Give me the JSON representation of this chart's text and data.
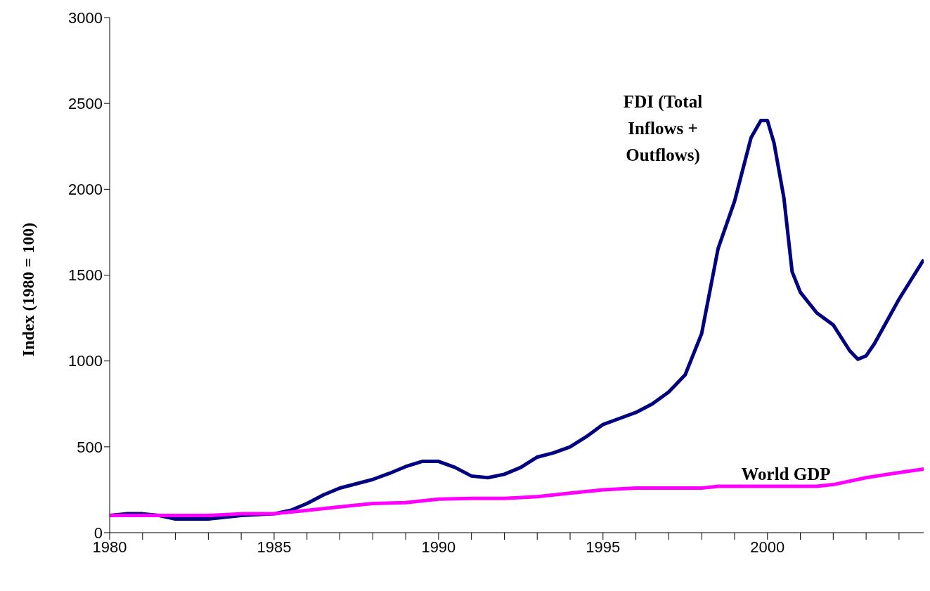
{
  "chart_data": {
    "type": "line",
    "ylabel": "Index (1980 = 100)",
    "xlim": [
      1980,
      2004.75
    ],
    "xticks": [
      1980,
      {
        "value": 1981,
        "label": null
      },
      {
        "value": 1982,
        "label": null
      },
      {
        "value": 1983,
        "label": null
      },
      {
        "value": 1984,
        "label": null
      },
      1985,
      {
        "value": 1986,
        "label": null
      },
      {
        "value": 1987,
        "label": null
      },
      {
        "value": 1988,
        "label": null
      },
      {
        "value": 1989,
        "label": null
      },
      1990,
      {
        "value": 1991,
        "label": null
      },
      {
        "value": 1992,
        "label": null
      },
      {
        "value": 1993,
        "label": null
      },
      {
        "value": 1994,
        "label": null
      },
      1995,
      {
        "value": 1996,
        "label": null
      },
      {
        "value": 1997,
        "label": null
      },
      {
        "value": 1998,
        "label": null
      },
      {
        "value": 1999,
        "label": null
      },
      2000,
      {
        "value": 2001,
        "label": null
      },
      {
        "value": 2002,
        "label": null
      },
      {
        "value": 2003,
        "label": null
      },
      {
        "value": 2004,
        "label": null
      }
    ],
    "ylim": [
      0,
      3000
    ],
    "yticks": [
      0,
      500,
      1000,
      1500,
      2000,
      2500,
      3000
    ],
    "grid": false,
    "legend": false,
    "marker": "none",
    "line_style": "solid",
    "series": [
      {
        "name": "FDI (Total Inflows + Outflows)",
        "color": "#000080",
        "x": [
          1980,
          1980.5,
          1981,
          1981.5,
          1982,
          1983,
          1984,
          1985,
          1985.5,
          1986,
          1986.5,
          1987,
          1988,
          1988.5,
          1989,
          1989.5,
          1990,
          1990.5,
          1991,
          1991.5,
          1992,
          1992.5,
          1993,
          1993.5,
          1994,
          1994.5,
          1995,
          1995.5,
          1996,
          1996.5,
          1997,
          1997.5,
          1998,
          1998.5,
          1999,
          1999.5,
          1999.8,
          2000,
          2000.2,
          2000.5,
          2000.75,
          2001,
          2001.5,
          2002,
          2002.5,
          2002.75,
          2003,
          2003.25,
          2004,
          2004.75
        ],
        "values": [
          100,
          110,
          110,
          100,
          80,
          80,
          100,
          110,
          130,
          170,
          220,
          260,
          310,
          345,
          385,
          415,
          415,
          380,
          330,
          320,
          340,
          380,
          440,
          465,
          500,
          560,
          630,
          665,
          700,
          750,
          820,
          920,
          1160,
          1655,
          1930,
          2300,
          2400,
          2400,
          2270,
          1950,
          1520,
          1400,
          1280,
          1210,
          1060,
          1010,
          1030,
          1100,
          1360,
          1590
        ]
      },
      {
        "name": "World GDP",
        "color": "#ff00ff",
        "x": [
          1980,
          1983,
          1984,
          1985,
          1986,
          1987,
          1988,
          1989,
          1990,
          1991,
          1992,
          1993,
          1994,
          1995,
          1996,
          1997,
          1998,
          1998.5,
          2001.5,
          2002,
          2003,
          2004,
          2004.75
        ],
        "values": [
          100,
          100,
          110,
          110,
          130,
          150,
          170,
          175,
          195,
          200,
          200,
          210,
          230,
          250,
          260,
          260,
          260,
          270,
          270,
          280,
          320,
          350,
          370
        ]
      }
    ]
  }
}
